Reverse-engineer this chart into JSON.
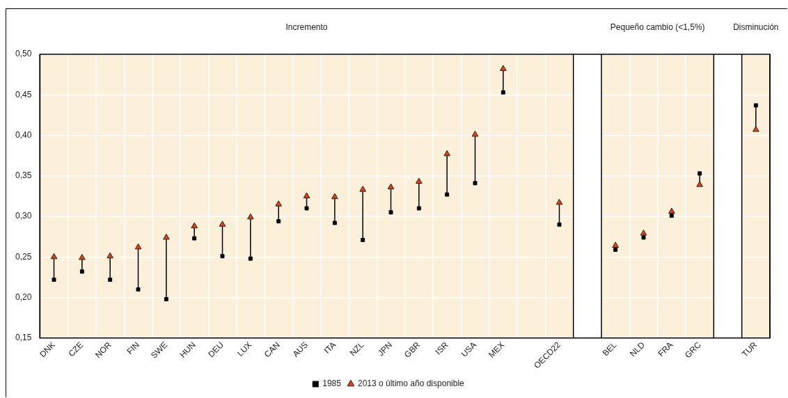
{
  "chart_data": {
    "type": "scatter",
    "categories": [
      "DNK",
      "CZE",
      "NOR",
      "FIN",
      "SWE",
      "HUN",
      "DEU",
      "LUX",
      "CAN",
      "AUS",
      "ITA",
      "NZL",
      "JPN",
      "GBR",
      "ISR",
      "USA",
      "MEX",
      null,
      "OECD22",
      null,
      "BEL",
      "NLD",
      "FRA",
      "GRC",
      null,
      "TUR"
    ],
    "series": [
      {
        "name": "1985",
        "color": "#000000",
        "marker": "square",
        "values": [
          0.222,
          0.232,
          0.222,
          0.21,
          0.198,
          0.273,
          0.251,
          0.248,
          0.294,
          0.31,
          0.292,
          0.271,
          0.305,
          0.31,
          0.327,
          0.341,
          0.453,
          null,
          0.29,
          null,
          0.259,
          0.274,
          0.301,
          0.353,
          null,
          0.437
        ]
      },
      {
        "name": "2013 o último año disponible",
        "color": "#d9441c",
        "marker": "triangle",
        "values": [
          0.25,
          0.249,
          0.251,
          0.262,
          0.274,
          0.288,
          0.29,
          0.299,
          0.315,
          0.325,
          0.324,
          0.333,
          0.336,
          0.343,
          0.377,
          0.401,
          0.482,
          null,
          0.317,
          null,
          0.264,
          0.279,
          0.306,
          0.339,
          null,
          0.407
        ]
      }
    ],
    "ylim": [
      0.15,
      0.5
    ],
    "yticks": [
      {
        "value": 0.15,
        "label": "0,15"
      },
      {
        "value": 0.2,
        "label": "0,20"
      },
      {
        "value": 0.25,
        "label": "0,25"
      },
      {
        "value": 0.3,
        "label": "0,30"
      },
      {
        "value": 0.35,
        "label": "0,35"
      },
      {
        "value": 0.4,
        "label": "0,40"
      },
      {
        "value": 0.45,
        "label": "0,45"
      },
      {
        "value": 0.5,
        "label": "0,50"
      }
    ],
    "grid": true,
    "legend": "bottom",
    "bands": [
      {
        "axis": "x",
        "from": "DNK",
        "to": "OECD22",
        "label": "Incremento",
        "color": "#fdf0da"
      },
      {
        "axis": "x",
        "from": "BEL",
        "to": "GRC",
        "label": "Pequeño cambio (<1,5%)",
        "color": "#fdf0da"
      },
      {
        "axis": "x",
        "from": "TUR",
        "to": "TUR",
        "label": "Disminución",
        "color": "#fdf0da"
      }
    ]
  }
}
